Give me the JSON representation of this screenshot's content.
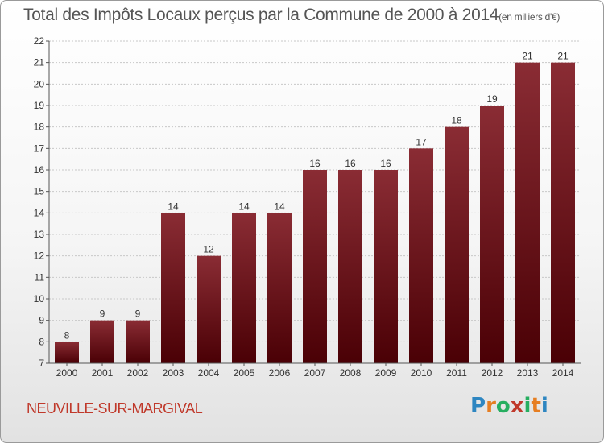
{
  "title": "Total des Impôts Locaux perçus par la Commune de 2000 à 2014",
  "unit_label": "(en milliers d'€)",
  "commune": "NEUVILLE-SUR-MARGIVAL",
  "logo": {
    "letters": [
      "P",
      "r",
      "o",
      "x",
      "i",
      "t",
      "i"
    ],
    "colors": [
      "#2e86c1",
      "#e67e22",
      "#27ae60",
      "#c0392b",
      "#27ae60",
      "#e67e22",
      "#2e86c1"
    ]
  },
  "colors": {
    "bar_top": "#8a2c34",
    "bar_bottom": "#4a0005",
    "axis": "#555555",
    "grid": "#c8c8c8",
    "text": "#333333"
  },
  "chart_data": {
    "type": "bar",
    "title": "Total des Impôts Locaux perçus par la Commune de 2000 à 2014",
    "xlabel": "",
    "ylabel": "en milliers d'€",
    "categories": [
      "2000",
      "2001",
      "2002",
      "2003",
      "2004",
      "2005",
      "2006",
      "2007",
      "2008",
      "2009",
      "2010",
      "2011",
      "2012",
      "2013",
      "2014"
    ],
    "values": [
      8,
      9,
      9,
      14,
      12,
      14,
      14,
      16,
      16,
      16,
      17,
      18,
      19,
      21,
      21
    ],
    "data_labels": [
      "8",
      "9",
      "9",
      "14",
      "12",
      "14",
      "14",
      "16",
      "16",
      "16",
      "17",
      "18",
      "19",
      "21",
      "21"
    ],
    "ylim": [
      7,
      22
    ],
    "yticks": [
      "7",
      "8",
      "9",
      "10",
      "11",
      "12",
      "13",
      "14",
      "15",
      "16",
      "17",
      "18",
      "19",
      "20",
      "21",
      "22"
    ],
    "grid": true,
    "legend": "none"
  }
}
